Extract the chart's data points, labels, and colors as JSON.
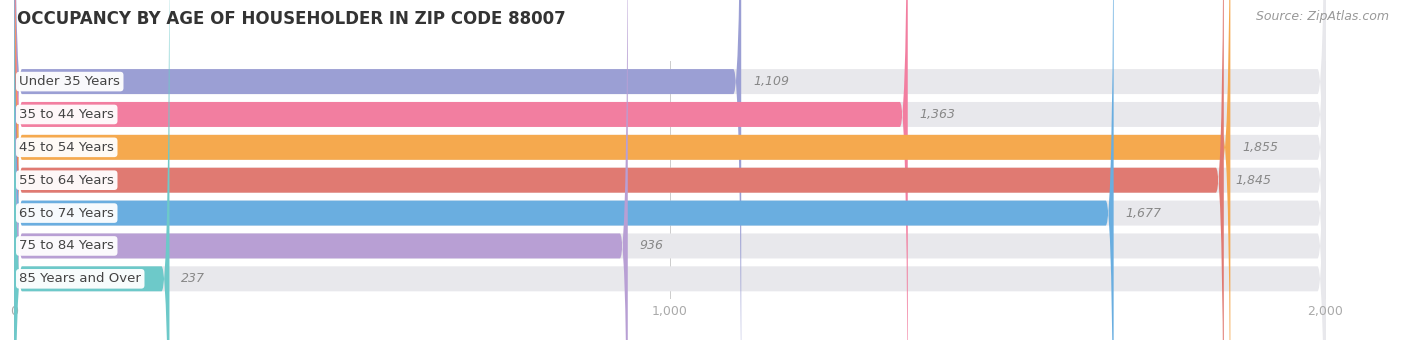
{
  "title": "OCCUPANCY BY AGE OF HOUSEHOLDER IN ZIP CODE 88007",
  "source": "Source: ZipAtlas.com",
  "categories": [
    "Under 35 Years",
    "35 to 44 Years",
    "45 to 54 Years",
    "55 to 64 Years",
    "65 to 74 Years",
    "75 to 84 Years",
    "85 Years and Over"
  ],
  "values": [
    1109,
    1363,
    1855,
    1845,
    1677,
    936,
    237
  ],
  "bar_colors": [
    "#9b9fd4",
    "#f27ea0",
    "#f5a94e",
    "#e07a72",
    "#6aaee0",
    "#b89fd4",
    "#6dc9c9"
  ],
  "bar_bg_color": "#e8e8ec",
  "background_color": "#ffffff",
  "xlim_max": 2000,
  "xticks": [
    0,
    1000,
    2000
  ],
  "title_fontsize": 12,
  "source_fontsize": 9,
  "label_fontsize": 9.5,
  "value_fontsize": 9
}
